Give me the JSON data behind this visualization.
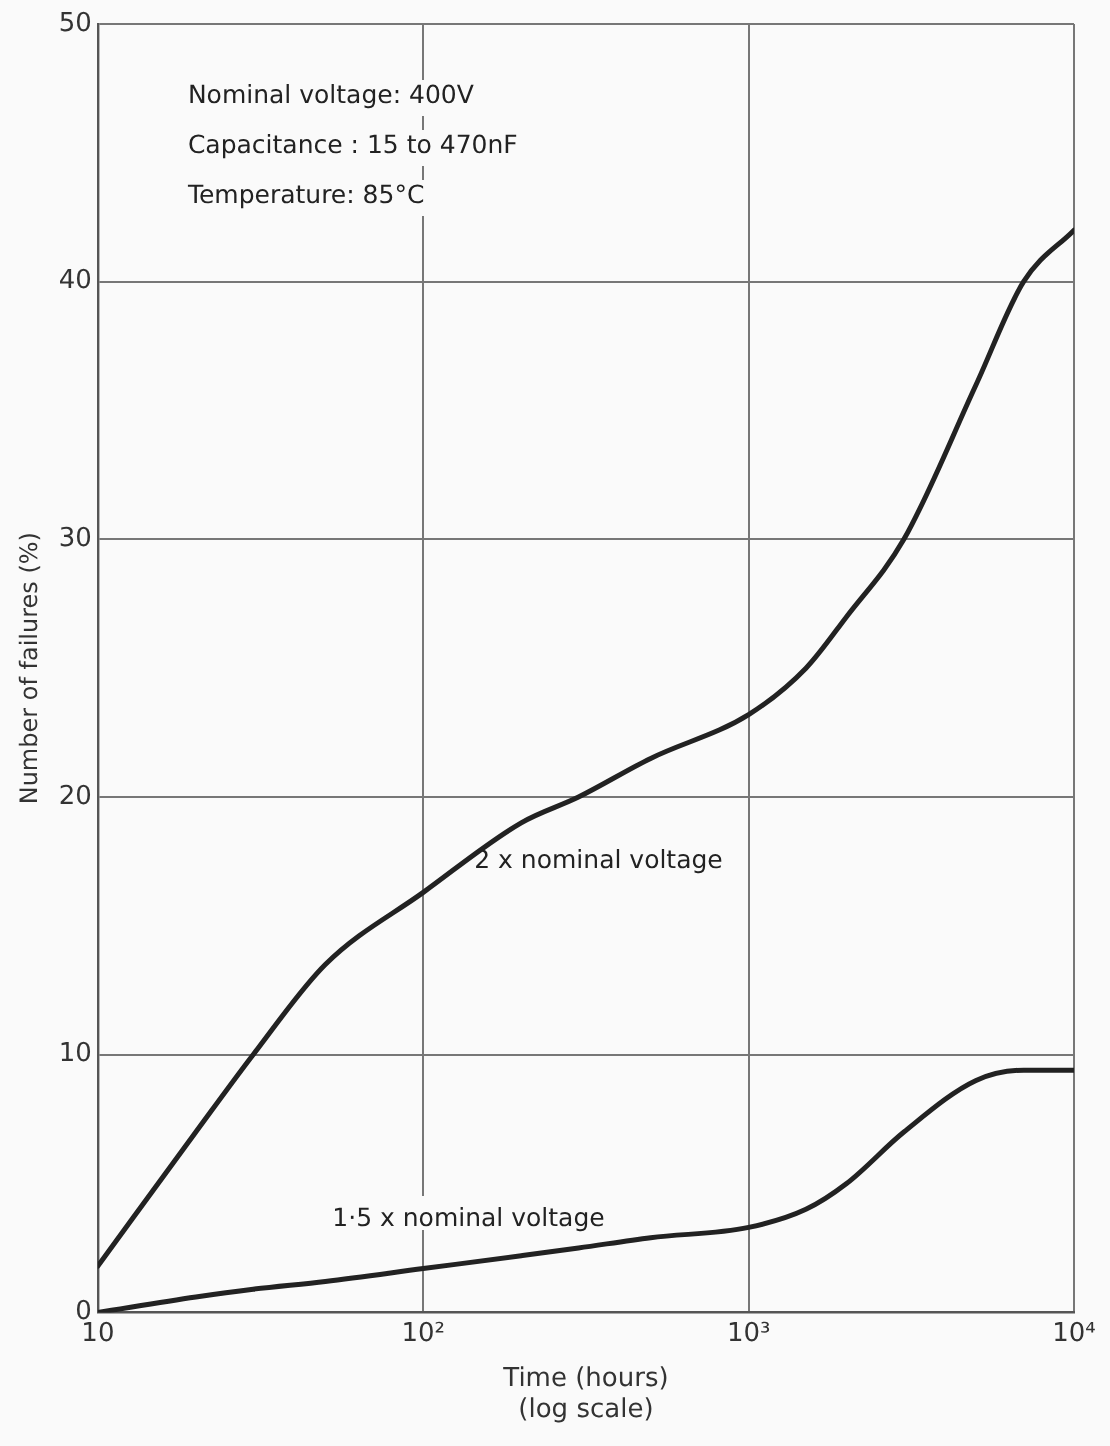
{
  "chart_data": {
    "type": "line",
    "xlabel": "Time (hours)\n(log scale)",
    "ylabel": "Number of failures (%)",
    "log": "x",
    "xlim": [
      10,
      10000
    ],
    "xticks": [
      10,
      {
        "value": 100,
        "label": "10²"
      },
      {
        "value": 1000,
        "label": "10³"
      },
      {
        "value": 10000,
        "label": "10⁴"
      }
    ],
    "ylim": [
      0,
      50
    ],
    "yticks": [
      0,
      10,
      20,
      30,
      40,
      50
    ],
    "grid": true,
    "legend": false,
    "marker": "none",
    "line_style": "solid",
    "annotations": [
      "Nominal voltage: 400V",
      "Capacitance : 15 to 470nF",
      "Temperature: 85°C"
    ],
    "series": [
      {
        "name": "2 x nominal voltage",
        "color": "#222222",
        "x": [
          10,
          20,
          30,
          50,
          100,
          200,
          300,
          500,
          1000,
          1500,
          2000,
          3000,
          5000,
          7000,
          10000
        ],
        "values": [
          1.8,
          7,
          10,
          13.5,
          16.3,
          19,
          20,
          21.5,
          23.2,
          25,
          27,
          30,
          36,
          40,
          42
        ]
      },
      {
        "name": "1·5 x nominal voltage",
        "color": "#222222",
        "x": [
          10,
          20,
          30,
          50,
          100,
          200,
          300,
          500,
          1000,
          1500,
          2000,
          3000,
          5000,
          7000,
          10000
        ],
        "values": [
          0,
          0.6,
          0.9,
          1.2,
          1.7,
          2.2,
          2.5,
          2.9,
          3.3,
          4,
          5,
          7,
          9,
          9.4,
          9.4
        ]
      }
    ]
  }
}
